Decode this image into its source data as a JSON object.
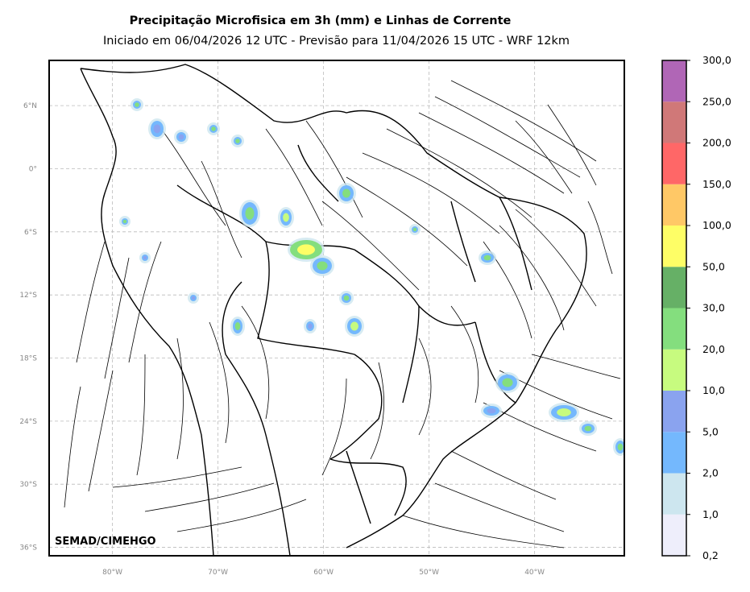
{
  "header": {
    "title": "Precipitação Microfisica em 3h (mm) e Linhas de Corrente",
    "subtitle": "Iniciado em 06/04/2026 12 UTC - Previsão para 11/04/2026 15 UTC - WRF 12km"
  },
  "credit": "SEMAD/CIMEHGO",
  "map": {
    "lat_labels": [
      {
        "lat": 6,
        "label": "6°N"
      },
      {
        "lat": 0,
        "label": "0°"
      },
      {
        "lat": -6,
        "label": "6°S"
      },
      {
        "lat": -12,
        "label": "12°S"
      },
      {
        "lat": -18,
        "label": "18°S"
      },
      {
        "lat": -24,
        "label": "24°S"
      },
      {
        "lat": -30,
        "label": "30°S"
      },
      {
        "lat": -36,
        "label": "36°S"
      }
    ],
    "lon_labels": [
      {
        "lon": -80,
        "label": "80°W"
      },
      {
        "lon": -70,
        "label": "70°W"
      },
      {
        "lon": -60,
        "label": "60°W"
      },
      {
        "lon": -50,
        "label": "50°W"
      },
      {
        "lon": -40,
        "label": "40°W"
      }
    ],
    "extent": {
      "lon_min": -86,
      "lon_max": -31.5,
      "lat_min": -36.8,
      "lat_max": 10.3
    },
    "gridlines": true
  },
  "colorbar": {
    "labels": [
      "0,2",
      "1,0",
      "2,0",
      "5,0",
      "10,0",
      "20,0",
      "30,0",
      "50,0",
      "100,0",
      "150,0",
      "200,0",
      "250,0",
      "300,0"
    ],
    "colors": [
      "#eeeefb",
      "#cde6ef",
      "#74b8fd",
      "#8aa3ef",
      "#c7fb7f",
      "#84de7e",
      "#66b066",
      "#fefe66",
      "#ffc866",
      "#ff6767",
      "#d07878",
      "#b066b6"
    ]
  }
}
